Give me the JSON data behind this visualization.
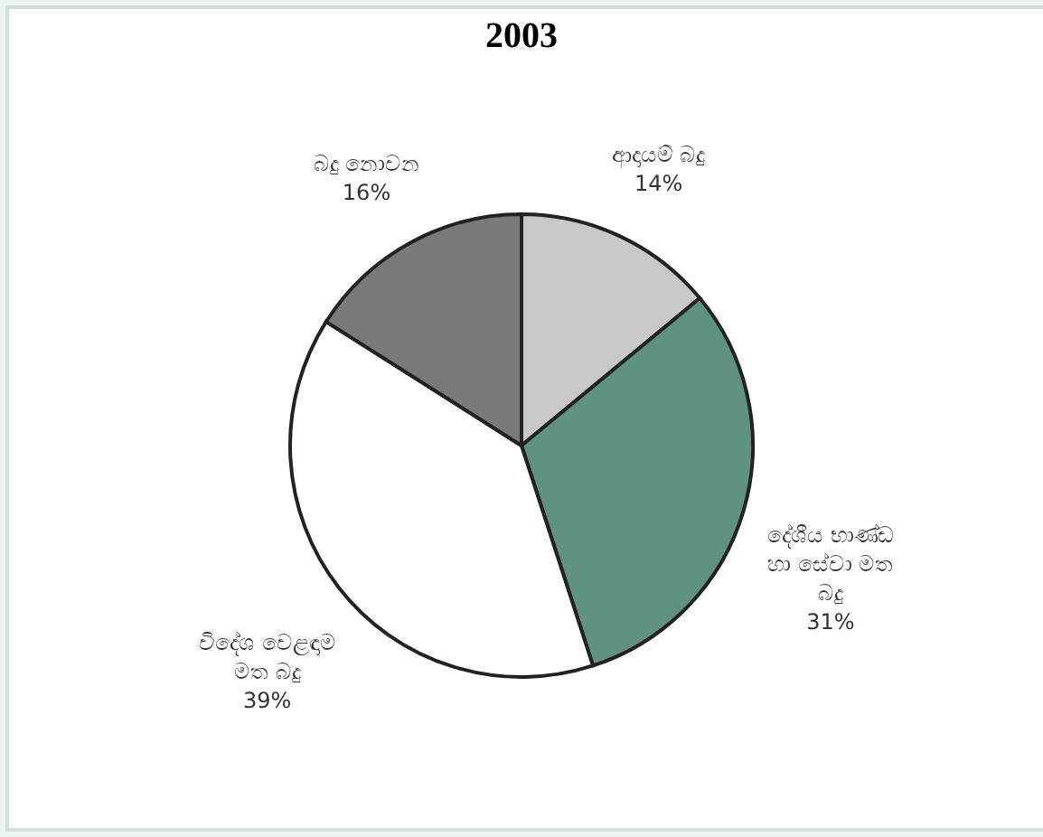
{
  "chart_data": {
    "type": "pie",
    "title": "2003",
    "categories": [
      "ආදායම් බදු",
      "දේශීය භාණ්ඩ හා සේවා මත බදු",
      "විදේශ වෙළඳාම මත බදු",
      "බදු නොවන"
    ],
    "values": [
      14,
      31,
      39,
      16
    ],
    "value_labels": [
      "14%",
      "31%",
      "39%",
      "16%"
    ],
    "colors": [
      "#c8c8c8",
      "#5f9282",
      "#ffffff",
      "#7a7a7a"
    ],
    "legend": false
  }
}
